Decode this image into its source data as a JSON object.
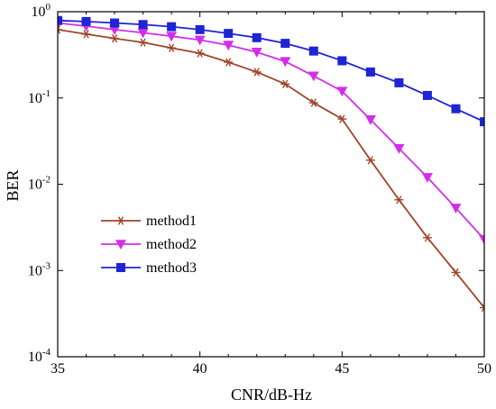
{
  "chart_data": {
    "type": "line",
    "xlabel": "CNR/dB-Hz",
    "ylabel": "BER",
    "y_scale": "log",
    "xlim": [
      35,
      50
    ],
    "ylim": [
      0.0001,
      1
    ],
    "x_ticks": [
      35,
      40,
      45,
      50
    ],
    "x_tick_labels": [
      "35",
      "40",
      "45",
      "50"
    ],
    "y_ticks": [
      0.0001,
      0.001,
      0.01,
      0.1,
      1
    ],
    "y_tick_labels": [
      {
        "base": "10",
        "exp": "-4"
      },
      {
        "base": "10",
        "exp": "-3"
      },
      {
        "base": "10",
        "exp": "-2"
      },
      {
        "base": "10",
        "exp": "-1"
      },
      {
        "base": "10",
        "exp": "0"
      }
    ],
    "grid": false,
    "legend_position": "center-left",
    "x": [
      35,
      36,
      37,
      38,
      39,
      40,
      41,
      42,
      43,
      44,
      45,
      46,
      47,
      48,
      49,
      50
    ],
    "series": [
      {
        "name": "method1",
        "color": "#a0452a",
        "marker": "asterisk",
        "values": [
          0.62,
          0.55,
          0.49,
          0.44,
          0.38,
          0.33,
          0.26,
          0.2,
          0.145,
          0.088,
          0.057,
          0.019,
          0.0066,
          0.0024,
          0.00095,
          0.00037
        ]
      },
      {
        "name": "method2",
        "color": "#d22ee8",
        "marker": "triangle-down",
        "values": [
          0.74,
          0.68,
          0.62,
          0.57,
          0.52,
          0.47,
          0.41,
          0.34,
          0.265,
          0.18,
          0.12,
          0.056,
          0.026,
          0.012,
          0.0053,
          0.0023
        ]
      },
      {
        "name": "method3",
        "color": "#1f24d4",
        "marker": "square",
        "values": [
          0.79,
          0.77,
          0.74,
          0.71,
          0.67,
          0.62,
          0.56,
          0.5,
          0.43,
          0.35,
          0.27,
          0.2,
          0.15,
          0.107,
          0.075,
          0.053
        ]
      }
    ]
  }
}
